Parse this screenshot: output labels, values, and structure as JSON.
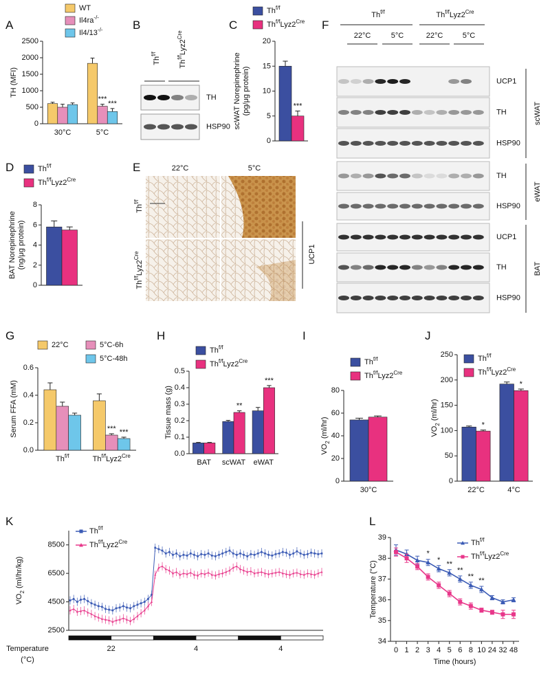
{
  "chart_data": [
    {
      "panel": "A",
      "type": "bar",
      "categories": [
        "30°C",
        "5°C"
      ],
      "ylabel": "TH (MFI)",
      "ylim": [
        0,
        2500
      ],
      "yticks": [
        0,
        500,
        1000,
        1500,
        2000,
        2500
      ],
      "series": [
        {
          "name": "WT",
          "color": "#f5c96a",
          "values": [
            610,
            1830
          ],
          "errors": [
            40,
            160
          ]
        },
        {
          "name": "Il4ra-/-",
          "color": "#e68fba",
          "values": [
            500,
            530
          ],
          "errors": [
            90,
            60
          ],
          "significance": [
            null,
            "***"
          ]
        },
        {
          "name": "Il4/13-/-",
          "color": "#6ec6ea",
          "values": [
            580,
            370
          ],
          "errors": [
            50,
            90
          ],
          "significance": [
            null,
            "***"
          ]
        }
      ]
    },
    {
      "panel": "C",
      "type": "bar",
      "categories": [
        null
      ],
      "ylabel": [
        "scWAT Norepinephrine",
        "(pg/μg protein)"
      ],
      "ylim": [
        0,
        20
      ],
      "yticks": [
        0,
        5,
        10,
        15,
        20
      ],
      "series": [
        {
          "name": "Thf/f",
          "color": "#3b4fa0",
          "values": [
            15
          ],
          "errors": [
            1
          ]
        },
        {
          "name": "Thf/fLyz2Cre",
          "color": "#e8317f",
          "values": [
            5
          ],
          "errors": [
            1
          ],
          "significance": [
            "***"
          ]
        }
      ]
    },
    {
      "panel": "D",
      "type": "bar",
      "categories": [
        null
      ],
      "ylabel": [
        "BAT Norepinephrine",
        "(ng/μg protein)"
      ],
      "ylim": [
        0,
        8
      ],
      "yticks": [
        0,
        2,
        4,
        6,
        8
      ],
      "series": [
        {
          "name": "Thf/f",
          "color": "#3b4fa0",
          "values": [
            5.8
          ],
          "errors": [
            0.6
          ]
        },
        {
          "name": "Thf/fLyz2Cre",
          "color": "#e8317f",
          "values": [
            5.5
          ],
          "errors": [
            0.3
          ]
        }
      ]
    },
    {
      "panel": "G",
      "type": "bar",
      "categories": [
        "Thf/f",
        "Thf/fLyz2Cre"
      ],
      "ylabel": "Serum FFA (mM)",
      "ylim": [
        0,
        0.6
      ],
      "yticks": [
        {
          "value": 0,
          "label": "0.0"
        },
        0.2,
        0.4,
        0.6
      ],
      "series": [
        {
          "name": "22°C",
          "color": "#f5c96a",
          "values": [
            0.44,
            0.36
          ],
          "errors": [
            0.05,
            0.05
          ]
        },
        {
          "name": "5°C-6h",
          "color": "#e68fba",
          "values": [
            0.32,
            0.11
          ],
          "errors": [
            0.03,
            0.01
          ],
          "significance": [
            null,
            "***"
          ]
        },
        {
          "name": "5°C-48h",
          "color": "#6ec6ea",
          "values": [
            0.255,
            0.085
          ],
          "errors": [
            0.015,
            0.01
          ],
          "significance": [
            null,
            "***"
          ]
        }
      ]
    },
    {
      "panel": "H",
      "type": "bar",
      "categories": [
        "BAT",
        "scWAT",
        "eWAT"
      ],
      "ylabel": "Tissue mass (g)",
      "ylim": [
        0,
        0.5
      ],
      "yticks": [
        {
          "value": 0,
          "label": "0.0"
        },
        0.1,
        0.2,
        0.3,
        0.4,
        0.5
      ],
      "series": [
        {
          "name": "Thf/f",
          "color": "#3b4fa0",
          "values": [
            0.065,
            0.195,
            0.26
          ],
          "errors": [
            0.003,
            0.007,
            0.02
          ]
        },
        {
          "name": "Thf/fLyz2Cre",
          "color": "#e8317f",
          "values": [
            0.065,
            0.25,
            0.4
          ],
          "errors": [
            0.003,
            0.01,
            0.013
          ],
          "significance": [
            null,
            "**",
            "***"
          ]
        }
      ]
    },
    {
      "panel": "I",
      "type": "bar",
      "categories": [
        "30°C"
      ],
      "ylabel": "VO2 (ml/hr)",
      "ylim": [
        0,
        80
      ],
      "yticks": [
        0,
        20,
        40,
        60,
        80
      ],
      "series": [
        {
          "name": "Thf/f",
          "color": "#3b4fa0",
          "values": [
            54
          ],
          "errors": [
            1.5
          ]
        },
        {
          "name": "Thf/fLyz2Cre",
          "color": "#e8317f",
          "values": [
            56.5
          ],
          "errors": [
            1
          ]
        }
      ]
    },
    {
      "panel": "J",
      "type": "bar",
      "categories": [
        "22°C",
        "4°C"
      ],
      "ylabel": "VO2 (ml/hr)",
      "ylim": [
        0,
        250
      ],
      "yticks": [
        0,
        50,
        100,
        150,
        200,
        250
      ],
      "series": [
        {
          "name": "Thf/f",
          "color": "#3b4fa0",
          "values": [
            107,
            192
          ],
          "errors": [
            2,
            4
          ]
        },
        {
          "name": "Thf/fLyz2Cre",
          "color": "#e8317f",
          "values": [
            99,
            179
          ],
          "errors": [
            2,
            3
          ],
          "significance": [
            "*",
            "*"
          ]
        }
      ]
    },
    {
      "panel": "K",
      "type": "line",
      "ylabel": "VO2 (ml/hr/kg)",
      "ylim": [
        2500,
        9500
      ],
      "yticks": [
        2500,
        4500,
        6500,
        8500
      ],
      "temperature_bar": {
        "label": [
          "Temperature",
          "(°C)"
        ],
        "segments": [
          "22",
          "4",
          "4"
        ]
      },
      "series": [
        {
          "name": "Thf/f",
          "color": "#3b5bb5",
          "marker": "square",
          "values": [
            4600,
            4700,
            4500,
            4650,
            4700,
            4550,
            4400,
            4300,
            4200,
            4150,
            4000,
            3950,
            3900,
            4050,
            4100,
            4200,
            4100,
            4050,
            4200,
            4300,
            4400,
            4500,
            4700,
            5000,
            8300,
            8200,
            8100,
            7900,
            8000,
            7800,
            7900,
            7700,
            7800,
            7750,
            7900,
            7800,
            7700,
            7850,
            7800,
            7900,
            7750,
            7700,
            7800,
            7900,
            8000,
            8100,
            7900,
            7800,
            7900,
            7800,
            7700,
            7850,
            7800,
            7900,
            8000,
            7900,
            7800,
            7750,
            7850,
            7900,
            8000,
            7950,
            7800,
            7900,
            8050,
            7900,
            7800,
            7850,
            7950,
            7900,
            7850,
            7900
          ]
        },
        {
          "name": "Thf/fLyz2Cre",
          "color": "#e8378a",
          "marker": "triangle",
          "values": [
            3900,
            4000,
            3800,
            3850,
            3900,
            3750,
            3650,
            3500,
            3400,
            3300,
            3250,
            3200,
            3100,
            3200,
            3250,
            3350,
            3250,
            3150,
            3300,
            3500,
            3700,
            3900,
            4200,
            4500,
            6400,
            6900,
            7000,
            6800,
            6700,
            6500,
            6600,
            6400,
            6500,
            6450,
            6550,
            6400,
            6350,
            6500,
            6450,
            6550,
            6400,
            6350,
            6450,
            6500,
            6600,
            6700,
            6900,
            7000,
            6800,
            6700,
            6600,
            6650,
            6500,
            6550,
            6600,
            6500,
            6450,
            6500,
            6550,
            6600,
            6500,
            6450,
            6400,
            6500,
            6550,
            6450,
            6400,
            6500,
            6450,
            6400,
            6500,
            6600
          ]
        }
      ]
    },
    {
      "panel": "L",
      "type": "line",
      "categories": [
        "0",
        "1",
        "2",
        "3",
        "4",
        "5",
        "6",
        "8",
        "10",
        "24",
        "32",
        "48"
      ],
      "xlabel": "Time (hours)",
      "ylabel": "Temperature (°C)",
      "ylim": [
        34,
        39
      ],
      "yticks": [
        34,
        35,
        36,
        37,
        38,
        39
      ],
      "series": [
        {
          "name": "Thf/f",
          "color": "#3b5bb5",
          "marker": "triangle",
          "values": [
            38.4,
            38.2,
            37.9,
            37.8,
            37.5,
            37.3,
            37.0,
            36.7,
            36.5,
            36.1,
            35.9,
            36.0
          ],
          "errors": [
            0.25,
            0.2,
            0.2,
            0.15,
            0.15,
            0.15,
            0.15,
            0.15,
            0.15,
            0.1,
            0.1,
            0.1
          ]
        },
        {
          "name": "Thf/fLyz2Cre",
          "color": "#e8378a",
          "marker": "square",
          "values": [
            38.3,
            38.0,
            37.6,
            37.1,
            36.7,
            36.3,
            35.9,
            35.7,
            35.5,
            35.4,
            35.3,
            35.3
          ],
          "errors": [
            0.2,
            0.2,
            0.15,
            0.15,
            0.15,
            0.15,
            0.15,
            0.15,
            0.1,
            0.1,
            0.2,
            0.2
          ],
          "significance": [
            null,
            null,
            null,
            "*",
            "*",
            "**",
            "**",
            "**",
            "**",
            null,
            null,
            null
          ]
        }
      ]
    }
  ],
  "blot_B": {
    "panel": "B",
    "lanes": [
      "Thf/f",
      "Thf/fLyz2Cre"
    ],
    "rows": [
      "TH",
      "HSP90"
    ]
  },
  "image_E": {
    "panel": "E",
    "columns": [
      "22°C",
      "5°C"
    ],
    "rows": [
      "Thf/f",
      "Thf/fLyz2Cre"
    ],
    "stain": "UCP1"
  },
  "blot_F": {
    "panel": "F",
    "groups": [
      "Thf/f",
      "Thf/fLyz2Cre"
    ],
    "temperatures": [
      "22°C",
      "5°C",
      "22°C",
      "5°C"
    ],
    "tissues": [
      {
        "name": "scWAT",
        "rows": [
          "UCP1",
          "TH",
          "HSP90"
        ]
      },
      {
        "name": "eWAT",
        "rows": [
          "TH",
          "HSP90"
        ]
      },
      {
        "name": "BAT",
        "rows": [
          "UCP1",
          "TH",
          "HSP90"
        ]
      }
    ]
  }
}
